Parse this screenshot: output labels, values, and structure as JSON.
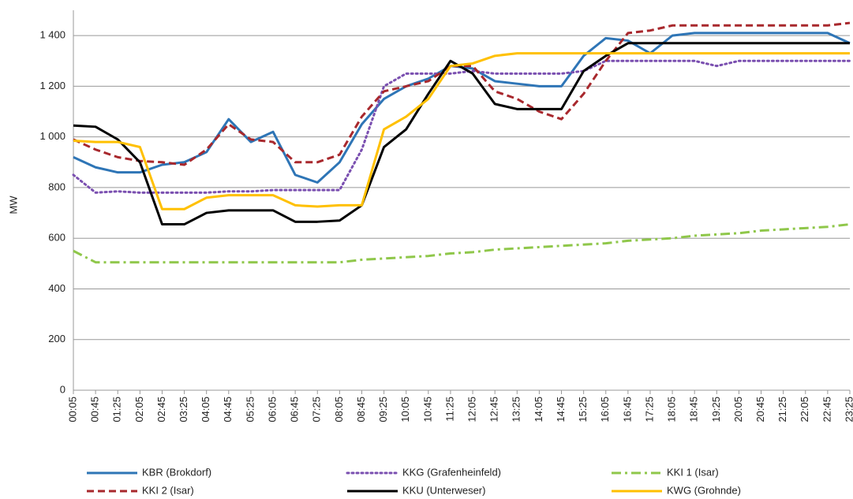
{
  "chart_data": {
    "type": "line",
    "y_label": "MW",
    "categories": [
      "00:05",
      "00:45",
      "01:25",
      "02:05",
      "02:45",
      "03:25",
      "04:05",
      "04:45",
      "05:25",
      "06:05",
      "06:45",
      "07:25",
      "08:05",
      "08:45",
      "09:25",
      "10:05",
      "10:45",
      "11:25",
      "12:05",
      "12:45",
      "13:25",
      "14:05",
      "14:45",
      "15:25",
      "16:05",
      "16:45",
      "17:25",
      "18:05",
      "18:45",
      "19:25",
      "20:05",
      "20:45",
      "21:25",
      "22:05",
      "22:45",
      "23:25"
    ],
    "ylim": [
      0,
      1500
    ],
    "yticks": [
      0,
      200,
      400,
      600,
      800,
      {
        "value": 1000,
        "label": "1 000"
      },
      {
        "value": 1200,
        "label": "1 200"
      },
      {
        "value": 1400,
        "label": "1 400"
      }
    ],
    "grid": true,
    "legend": "bottom",
    "series": [
      {
        "name": "KBR (Brokdorf)",
        "color": "#2e75b6",
        "dash": "solid",
        "values": [
          920,
          880,
          860,
          860,
          890,
          900,
          940,
          1070,
          980,
          1020,
          850,
          820,
          900,
          1050,
          1150,
          1200,
          1230,
          1280,
          1270,
          1220,
          1210,
          1200,
          1200,
          1320,
          1390,
          1380,
          1330,
          1400,
          1410,
          1410,
          1410,
          1410,
          1410,
          1410,
          1410,
          1370
        ]
      },
      {
        "name": "KKG (Grafenheinfeld)",
        "color": "#7a4fb0",
        "dash": "dotted",
        "values": [
          850,
          780,
          785,
          780,
          780,
          780,
          780,
          785,
          785,
          790,
          790,
          790,
          790,
          950,
          1200,
          1250,
          1250,
          1250,
          1260,
          1250,
          1250,
          1250,
          1250,
          1260,
          1300,
          1300,
          1300,
          1300,
          1300,
          1280,
          1300,
          1300,
          1300,
          1300,
          1300,
          1300
        ]
      },
      {
        "name": "KKI 1 (Isar)",
        "color": "#8fc74a",
        "dash": "dashdot",
        "values": [
          550,
          505,
          505,
          505,
          505,
          505,
          505,
          505,
          505,
          505,
          505,
          505,
          505,
          515,
          520,
          525,
          530,
          540,
          545,
          555,
          560,
          565,
          570,
          575,
          580,
          590,
          595,
          600,
          610,
          615,
          620,
          630,
          635,
          640,
          645,
          655
        ]
      },
      {
        "name": "KKI 2 (Isar)",
        "color": "#a8282d",
        "dash": "dashed",
        "values": [
          990,
          950,
          920,
          905,
          900,
          890,
          950,
          1050,
          990,
          980,
          900,
          900,
          930,
          1080,
          1180,
          1200,
          1220,
          1280,
          1280,
          1180,
          1150,
          1100,
          1070,
          1170,
          1300,
          1410,
          1420,
          1440,
          1440,
          1440,
          1440,
          1440,
          1440,
          1440,
          1440,
          1450
        ]
      },
      {
        "name": "KKU (Unterweser)",
        "color": "#000000",
        "dash": "solid",
        "values": [
          1045,
          1040,
          990,
          900,
          655,
          655,
          700,
          710,
          710,
          710,
          665,
          665,
          670,
          730,
          960,
          1030,
          1170,
          1300,
          1250,
          1130,
          1110,
          1110,
          1110,
          1260,
          1320,
          1370,
          1370,
          1370,
          1370,
          1370,
          1370,
          1370,
          1370,
          1370,
          1370,
          1370
        ]
      },
      {
        "name": "KWG (Grohnde)",
        "color": "#ffc000",
        "dash": "solid",
        "values": [
          985,
          980,
          980,
          960,
          715,
          715,
          760,
          770,
          770,
          770,
          730,
          725,
          730,
          730,
          1030,
          1080,
          1150,
          1280,
          1290,
          1320,
          1330,
          1330,
          1330,
          1330,
          1330,
          1330,
          1330,
          1330,
          1330,
          1330,
          1330,
          1330,
          1330,
          1330,
          1330,
          1330
        ]
      }
    ]
  }
}
